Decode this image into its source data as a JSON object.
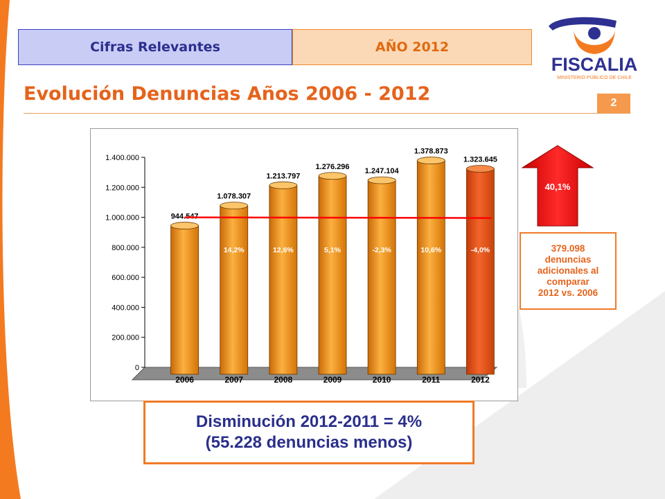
{
  "header": {
    "tab_left": "Cifras Relevantes",
    "tab_right": "AÑO 2012",
    "title": "Evolución Denuncias Años 2006 - 2012",
    "page_number": "2"
  },
  "logo": {
    "text": "FISCALIA",
    "subtext": "MINISTERIO PÚBLICO DE CHILE"
  },
  "arrow": {
    "label": "40,1%"
  },
  "info_box": {
    "lines": [
      "379.098",
      "denuncias",
      "adicionales al",
      "comparar",
      "2012 vs. 2006"
    ]
  },
  "summary": {
    "line1": "Disminución 2012-2011 = 4%",
    "line2": "(55.228 denuncias menos)"
  },
  "colors": {
    "accent": "#e5631c",
    "bar": "#f39a1e",
    "bar_highlight": "#e8531b",
    "navy": "#2a2f8c",
    "trend": "#ff0000"
  },
  "chart_data": {
    "type": "bar",
    "categories": [
      "2006",
      "2007",
      "2008",
      "2009",
      "2010",
      "2011",
      "2012"
    ],
    "values": [
      944547,
      1078307,
      1213797,
      1276296,
      1247104,
      1378873,
      1323645
    ],
    "value_labels": [
      "944.547",
      "1.078.307",
      "1.213.797",
      "1.276.296",
      "1.247.104",
      "1.378.873",
      "1.323.645"
    ],
    "pct_changes": [
      "",
      "14,2%",
      "12,6%",
      "5,1%",
      "-2,3%",
      "10,6%",
      "-4,0%"
    ],
    "ylim": [
      0,
      1400000
    ],
    "yticks": [
      0,
      200000,
      400000,
      600000,
      800000,
      1000000,
      1200000,
      1400000
    ],
    "ytick_labels": [
      "0",
      "200.000",
      "400.000",
      "600.000",
      "800.000",
      "1.000.000",
      "1.200.000",
      "1.400.000"
    ],
    "average_line": 1000000,
    "highlight_last": true,
    "grid": false
  }
}
